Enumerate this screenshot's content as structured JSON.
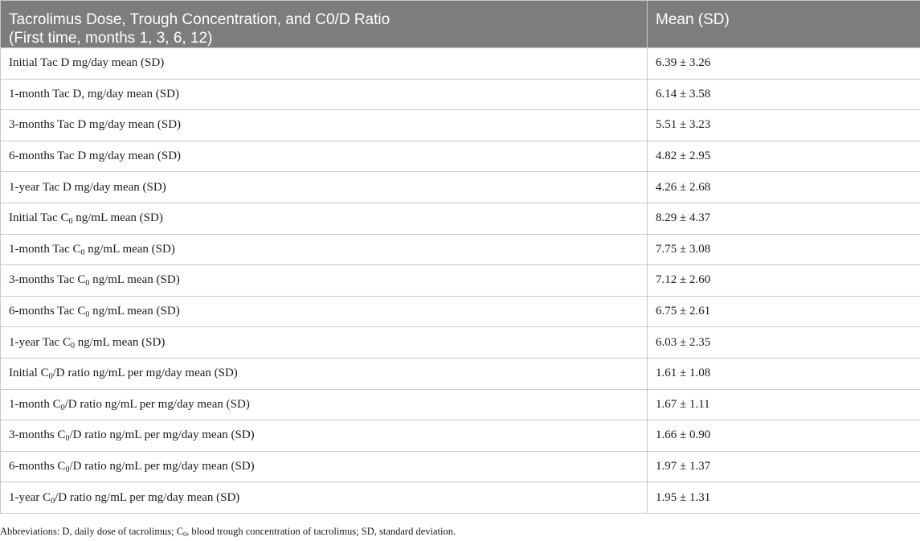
{
  "table": {
    "headers": [
      "Tacrolimus Dose, Trough Concentration, and C0/D Ratio\n(First time, months 1, 3, 6, 12)",
      "Mean (SD)"
    ],
    "rows": [
      {
        "pre": "Initial Tac D mg/day mean (SD)",
        "sub": "",
        "post": "",
        "value": "6.39 ± 3.26"
      },
      {
        "pre": "1-month Tac D, mg/day mean (SD)",
        "sub": "",
        "post": "",
        "value": "6.14 ± 3.58"
      },
      {
        "pre": "3-months Tac D mg/day mean (SD)",
        "sub": "",
        "post": "",
        "value": "5.51 ± 3.23"
      },
      {
        "pre": "6-months Tac D mg/day mean (SD)",
        "sub": "",
        "post": "",
        "value": "4.82 ± 2.95"
      },
      {
        "pre": "1-year Tac D mg/day mean (SD)",
        "sub": "",
        "post": "",
        "value": "4.26 ± 2.68"
      },
      {
        "pre": "Initial Tac C",
        "sub": "0",
        "post": " ng/mL mean (SD)",
        "value": "8.29 ± 4.37"
      },
      {
        "pre": "1-month Tac C",
        "sub": "0",
        "post": " ng/mL mean (SD)",
        "value": "7.75 ± 3.08"
      },
      {
        "pre": "3-months Tac C",
        "sub": "0",
        "post": " ng/mL mean (SD)",
        "value": "7.12 ± 2.60"
      },
      {
        "pre": "6-months Tac C",
        "sub": "0",
        "post": " ng/mL mean (SD)",
        "value": "6.75 ± 2.61"
      },
      {
        "pre": "1-year Tac C",
        "sub": "0",
        "post": " ng/mL mean (SD)",
        "value": "6.03 ± 2.35"
      },
      {
        "pre": "Initial C",
        "sub": "0",
        "post": "/D ratio ng/mL per mg/day mean (SD)",
        "value": "1.61 ± 1.08"
      },
      {
        "pre": "1-month C",
        "sub": "0",
        "post": "/D ratio ng/mL per mg/day mean (SD)",
        "value": "1.67 ± 1.11"
      },
      {
        "pre": "3-months C",
        "sub": "0",
        "post": "/D ratio ng/mL per mg/day mean (SD)",
        "value": "1.66 ± 0.90"
      },
      {
        "pre": "6-months C",
        "sub": "0",
        "post": "/D ratio ng/mL per mg/day mean (SD)",
        "value": "1.97 ± 1.37"
      },
      {
        "pre": "1-year C",
        "sub": "0",
        "post": "/D ratio ng/mL per mg/day mean (SD)",
        "value": "1.95 ± 1.31"
      }
    ]
  },
  "footnote": {
    "pre": "Abbreviations: D, daily dose of tacrolimus; C",
    "sub": "0",
    "post": ", blood trough concentration of tacrolimus; SD, standard deviation."
  },
  "colors": {
    "header_bg": "#7d7d7d",
    "header_text": "#ffffff",
    "grid": "#c8c8c8"
  }
}
